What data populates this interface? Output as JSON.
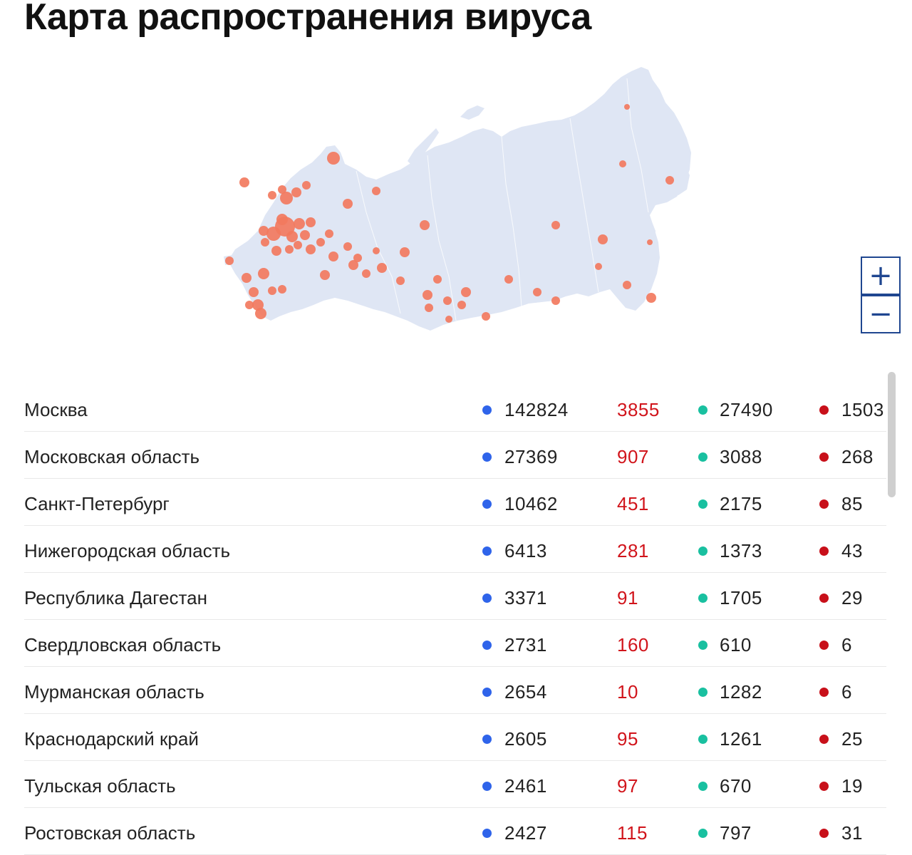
{
  "title": "Карта распространения вируса",
  "map": {
    "land_color": "#dfe6f4",
    "marker_color": "#f27a5e",
    "zoom_in_label": "+",
    "zoom_out_label": "−"
  },
  "colors": {
    "cases": "#2f64ea",
    "new": "#d1141b",
    "recovered": "#19c0a0",
    "deaths": "#c8101a"
  },
  "rows": [
    {
      "region": "Москва",
      "cases": "142824",
      "new": "3855",
      "recovered": "27490",
      "deaths": "1503"
    },
    {
      "region": "Московская область",
      "cases": "27369",
      "new": "907",
      "recovered": "3088",
      "deaths": "268"
    },
    {
      "region": "Санкт-Петербург",
      "cases": "10462",
      "new": "451",
      "recovered": "2175",
      "deaths": "85"
    },
    {
      "region": "Нижегородская область",
      "cases": "6413",
      "new": "281",
      "recovered": "1373",
      "deaths": "43"
    },
    {
      "region": "Республика Дагестан",
      "cases": "3371",
      "new": "91",
      "recovered": "1705",
      "deaths": "29"
    },
    {
      "region": "Свердловская область",
      "cases": "2731",
      "new": "160",
      "recovered": "610",
      "deaths": "6"
    },
    {
      "region": "Мурманская область",
      "cases": "2654",
      "new": "10",
      "recovered": "1282",
      "deaths": "6"
    },
    {
      "region": "Краснодарский край",
      "cases": "2605",
      "new": "95",
      "recovered": "1261",
      "deaths": "25"
    },
    {
      "region": "Тульская область",
      "cases": "2461",
      "new": "97",
      "recovered": "670",
      "deaths": "19"
    },
    {
      "region": "Ростовская область",
      "cases": "2427",
      "new": "115",
      "recovered": "797",
      "deaths": "31"
    }
  ]
}
